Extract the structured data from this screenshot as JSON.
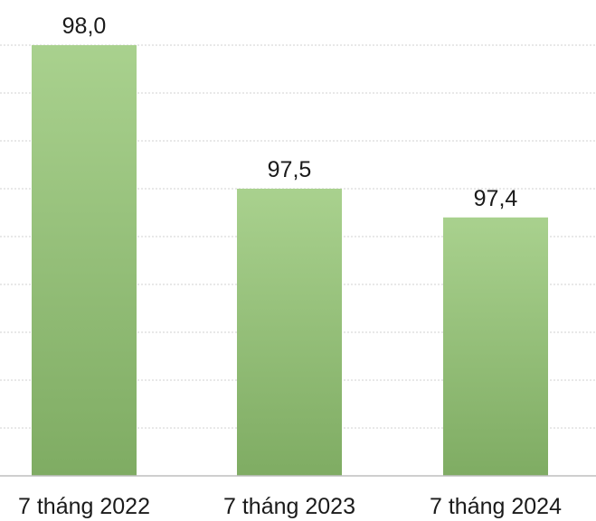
{
  "chart_data": {
    "type": "bar",
    "categories": [
      "7 tháng 2022",
      "7 tháng 2023",
      "7 tháng 2024"
    ],
    "values": [
      98.0,
      97.5,
      97.4
    ],
    "value_labels": [
      "98,0",
      "97,5",
      "97,4"
    ],
    "title": "",
    "xlabel": "",
    "ylabel": "",
    "ylim": [
      96.5,
      98.0
    ],
    "grid": true,
    "colors": {
      "bar_top": "#a9d18e",
      "bar_bottom": "#7fac63",
      "grid": "#d0d0d0",
      "axis": "#bfbfbf"
    }
  }
}
